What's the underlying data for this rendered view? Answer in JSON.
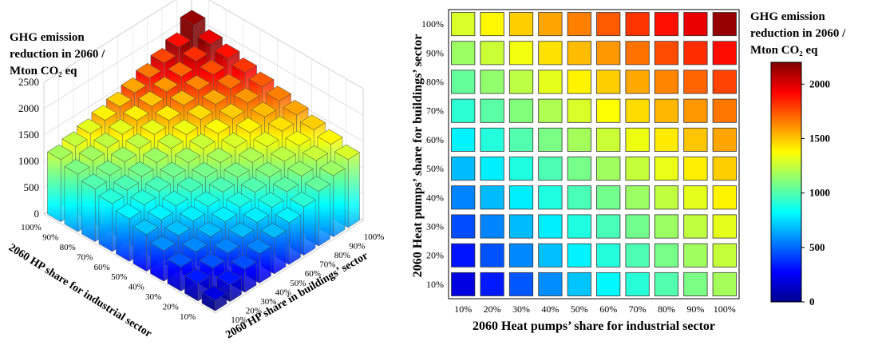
{
  "chart_data": [
    {
      "type": "bar3d",
      "zlabel_lines": [
        "GHG emission",
        "reduction in 2060 /",
        "Mton CO₂ eq"
      ],
      "xlabel": "2060 HP share for industrial sector",
      "ylabel": "2060 HP share in buildings’ sector",
      "zticks": [
        "2500",
        "2000",
        "1500",
        "1000",
        "500",
        "0"
      ],
      "zlim": [
        0,
        2500
      ],
      "industrial_ticks": [
        "100%",
        "90%",
        "80%",
        "70%",
        "60%",
        "50%",
        "40%",
        "30%",
        "20%",
        "10%"
      ],
      "buildings_ticks": [
        "10%",
        "20%",
        "30%",
        "40%",
        "50%",
        "60%",
        "70%",
        "80%",
        "90%",
        "100%"
      ],
      "grid_source": "same values as heatmap"
    },
    {
      "type": "heatmap",
      "xlabel": "2060 Heat pumps’ share for industrial sector",
      "ylabel": "2060 Heat pumps’ share for buildings’ sector",
      "x_categories": [
        "10%",
        "20%",
        "30%",
        "40%",
        "50%",
        "60%",
        "70%",
        "80%",
        "90%",
        "100%"
      ],
      "y_categories": [
        "10%",
        "20%",
        "30%",
        "40%",
        "50%",
        "60%",
        "70%",
        "80%",
        "90%",
        "100%"
      ],
      "values_note": "rows ordered by buildings share 10%..100%, columns by industrial share 10%..100%",
      "values": [
        [
          200,
          330,
          460,
          580,
          700,
          810,
          910,
          1000,
          1090,
          1180
        ],
        [
          320,
          450,
          570,
          690,
          800,
          900,
          990,
          1080,
          1170,
          1250
        ],
        [
          440,
          560,
          680,
          790,
          890,
          980,
          1070,
          1160,
          1240,
          1320
        ],
        [
          560,
          680,
          790,
          890,
          980,
          1070,
          1160,
          1240,
          1320,
          1400
        ],
        [
          680,
          790,
          890,
          990,
          1080,
          1170,
          1250,
          1330,
          1410,
          1480
        ],
        [
          800,
          900,
          1000,
          1090,
          1180,
          1260,
          1340,
          1420,
          1500,
          1570
        ],
        [
          920,
          1020,
          1110,
          1200,
          1290,
          1370,
          1450,
          1530,
          1600,
          1670
        ],
        [
          1040,
          1140,
          1230,
          1320,
          1400,
          1480,
          1560,
          1640,
          1710,
          1780
        ],
        [
          1160,
          1260,
          1350,
          1440,
          1520,
          1600,
          1680,
          1760,
          1830,
          1900
        ],
        [
          1290,
          1390,
          1480,
          1570,
          1650,
          1730,
          1810,
          1890,
          1970,
          2150
        ]
      ],
      "colorbar": {
        "title_lines": [
          "GHG emission",
          "reduction in 2060 /",
          "Mton CO₂ eq"
        ],
        "ticks": [
          "2000",
          "1500",
          "1000",
          "500",
          "0"
        ],
        "range": [
          0,
          2200
        ]
      }
    }
  ]
}
